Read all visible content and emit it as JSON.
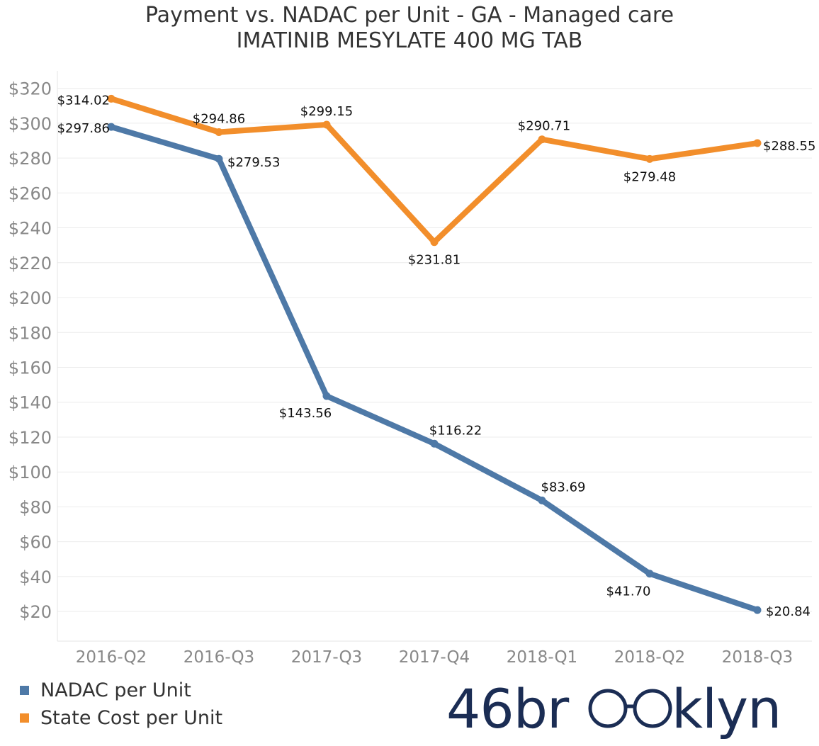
{
  "chart_data": {
    "type": "line",
    "title": "Payment vs. NADAC per Unit - GA - Managed care",
    "subtitle": "IMATINIB MESYLATE 400 MG TAB",
    "categories": [
      "2016-Q2",
      "2016-Q3",
      "2017-Q3",
      "2017-Q4",
      "2018-Q1",
      "2018-Q2",
      "2018-Q3"
    ],
    "y_ticks": [
      20,
      40,
      60,
      80,
      100,
      120,
      140,
      160,
      180,
      200,
      220,
      240,
      260,
      280,
      300,
      320
    ],
    "y_tick_labels": [
      "$20",
      "$40",
      "$60",
      "$80",
      "$100",
      "$120",
      "$140",
      "$160",
      "$180",
      "$200",
      "$220",
      "$240",
      "$260",
      "$280",
      "$300",
      "$320"
    ],
    "ylim": [
      3,
      330
    ],
    "grid": true,
    "legend_position": "bottom-left",
    "series": [
      {
        "name": "NADAC per Unit",
        "color": "#4e79a7",
        "values": [
          297.86,
          279.53,
          143.56,
          116.22,
          83.69,
          41.7,
          20.84
        ],
        "labels": [
          "$297.86",
          "$279.53",
          "$143.56",
          "$116.22",
          "$83.69",
          "$41.70",
          "$20.84"
        ]
      },
      {
        "name": "State Cost per Unit",
        "color": "#f28e2b",
        "values": [
          314.02,
          294.86,
          299.15,
          231.81,
          290.71,
          279.48,
          288.55
        ],
        "labels": [
          "$314.02",
          "$294.86",
          "$299.15",
          "$231.81",
          "$290.71",
          "$279.48",
          "$288.55"
        ]
      }
    ]
  },
  "brand": {
    "prefix": "46br",
    "suffix": "klyn",
    "color": "#1b2d54"
  }
}
